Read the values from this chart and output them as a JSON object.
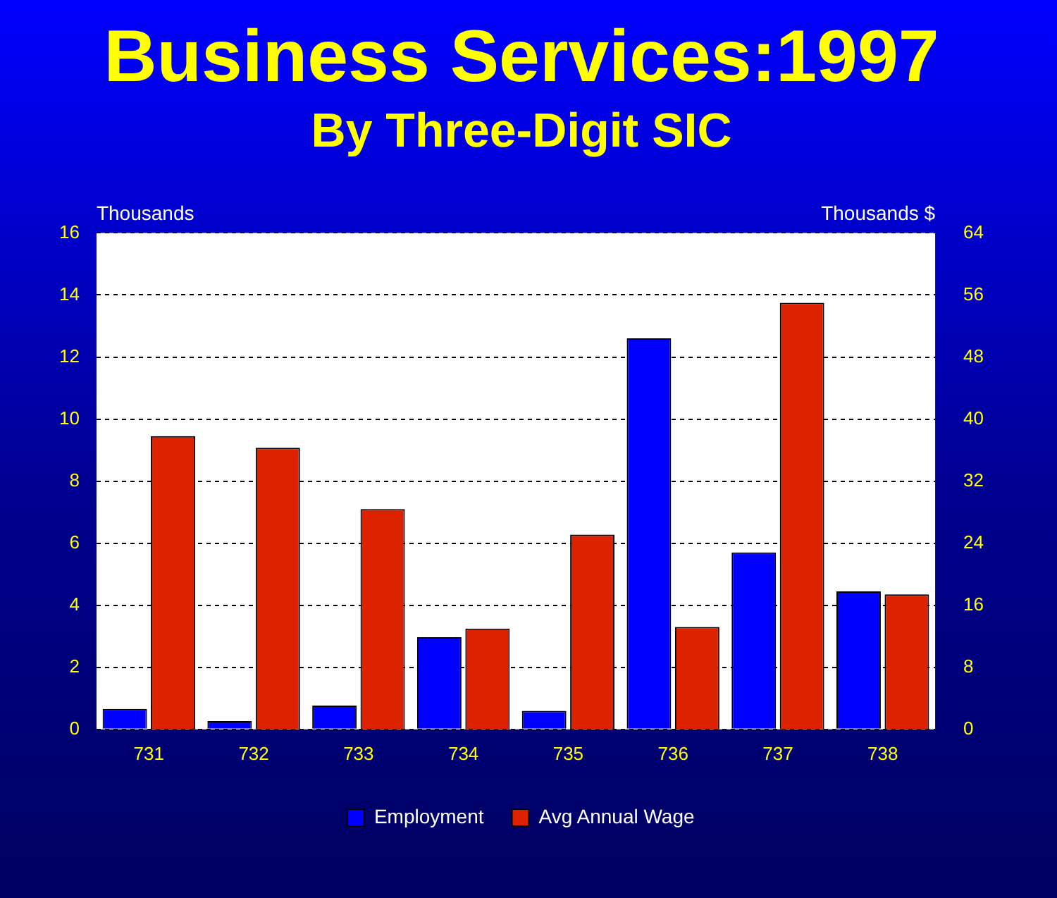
{
  "chart_data": {
    "type": "bar",
    "title": "Business Services:1997",
    "subtitle": "By Three-Digit SIC",
    "ylabel": "Thousands",
    "y2label": "Thousands $",
    "categories": [
      "731",
      "732",
      "733",
      "734",
      "735",
      "736",
      "737",
      "738"
    ],
    "series": [
      {
        "name": "Employment",
        "color": "#0000ff",
        "values": [
          0.66,
          0.27,
          0.77,
          2.97,
          0.6,
          12.6,
          5.7,
          4.45
        ]
      },
      {
        "name": "Avg Annual Wage",
        "color": "#dd2200",
        "axis": "y2",
        "values": [
          37.8,
          36.3,
          28.4,
          13,
          25.1,
          13.2,
          55,
          17.4
        ]
      }
    ],
    "ylim": [
      0,
      16
    ],
    "yticks": [
      0,
      2,
      4,
      6,
      8,
      10,
      12,
      14,
      16
    ],
    "y2lim": [
      0,
      64
    ],
    "y2ticks": [
      0,
      8,
      16,
      24,
      32,
      40,
      48,
      56,
      64
    ],
    "grid": "y",
    "legend": "bottom"
  }
}
